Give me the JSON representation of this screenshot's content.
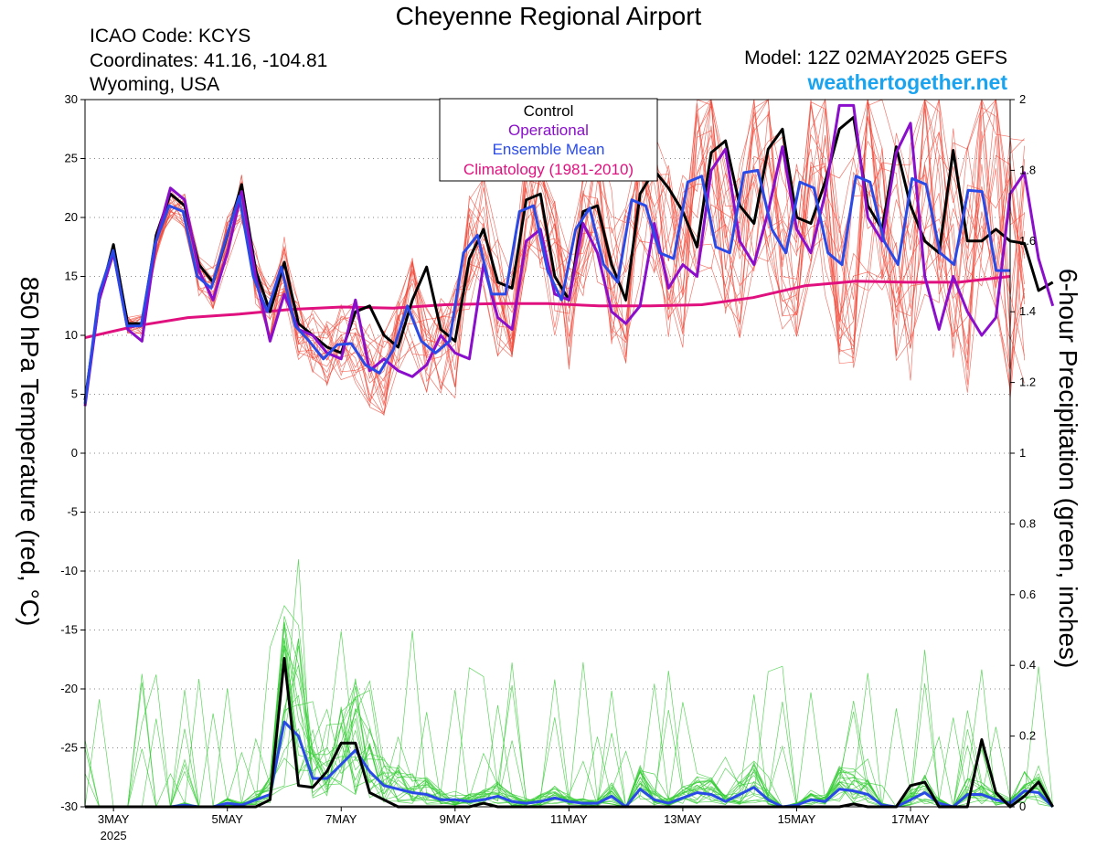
{
  "header": {
    "title": "Cheyenne Regional Airport",
    "icao": "ICAO Code: KCYS",
    "coordinates": "Coordinates: 41.16, -104.81",
    "location": "Wyoming, USA",
    "model": "Model: 12Z 02MAY2025 GEFS",
    "site": "weathertogether.net"
  },
  "colors": {
    "members_temp": "#f04a3a",
    "members_precip": "#33cc33",
    "control": "#000000",
    "operational": "#8a0ecc",
    "ensemble_mean": "#2a4ae8",
    "climatology": "#e0117f",
    "site_link": "#1aa3ee"
  },
  "chart_data": {
    "type": "line",
    "ylabel": "850 hPa Temperature (red, °C)",
    "y2label": "6-hour Precipitation (green, inches)",
    "ylim": [
      -30,
      30
    ],
    "y2lim": [
      0,
      2
    ],
    "yticks": [
      "30",
      "25",
      "20",
      "15",
      "10",
      "5",
      "0",
      "-5",
      "-10",
      "-15",
      "-20",
      "-25",
      "-30"
    ],
    "y2ticks": [
      "2",
      "1.8",
      "1.6",
      "1.4",
      "1.2",
      "1",
      "0.8",
      "0.6",
      "0.4",
      "0.2",
      "0"
    ],
    "x_unit": "days since 00Z 02MAY2025",
    "xlim": [
      0.5,
      16.75
    ],
    "xticks": [
      {
        "x": 1,
        "label": "3MAY",
        "sub": "2025"
      },
      {
        "x": 3,
        "label": "5MAY"
      },
      {
        "x": 5,
        "label": "7MAY"
      },
      {
        "x": 7,
        "label": "9MAY"
      },
      {
        "x": 9,
        "label": "11MAY"
      },
      {
        "x": 11,
        "label": "13MAY"
      },
      {
        "x": 13,
        "label": "15MAY"
      },
      {
        "x": 15,
        "label": "17MAY"
      }
    ],
    "grid": "dotted horizontal",
    "legend": {
      "position": "top-center",
      "entries": [
        "Control",
        "Operational",
        "Ensemble Mean",
        "Climatology (1981-2010)"
      ]
    },
    "x_start": 0.5,
    "x_step": 0.25,
    "series": [
      {
        "name": "Control",
        "axis": "temp",
        "values": [
          4.5,
          13,
          17.7,
          11,
          11,
          18.5,
          22,
          21,
          16,
          14.5,
          18.5,
          22.8,
          15.5,
          12,
          16.2,
          11,
          10,
          9,
          8.5,
          12,
          12.5,
          10,
          9,
          13,
          15.8,
          10.5,
          9.5,
          16.5,
          19,
          14.5,
          14,
          21.5,
          22,
          15,
          13,
          20.5,
          21,
          16,
          13,
          22,
          24,
          22.5,
          20.5,
          17.5,
          25.5,
          26.5,
          21,
          19.5,
          25.8,
          27.5,
          20,
          19.5,
          23,
          27.5,
          28.5,
          21,
          19,
          26,
          21,
          18,
          17,
          25.7,
          18,
          18,
          19,
          18,
          17.8,
          13.8,
          14.5
        ]
      },
      {
        "name": "Operational",
        "axis": "temp",
        "values": [
          4,
          13,
          17,
          10.5,
          9.5,
          18,
          22.5,
          21.5,
          15.5,
          13,
          17,
          22.2,
          15,
          9.5,
          13.5,
          10.5,
          10,
          8.5,
          8,
          13,
          7,
          8,
          7,
          6.5,
          7.5,
          10,
          8.5,
          8,
          16,
          11.5,
          10.5,
          18,
          19,
          13.5,
          13,
          19.5,
          17,
          12,
          11,
          12.5,
          19.5,
          14,
          16,
          15,
          24,
          25.8,
          18,
          16,
          20.5,
          26,
          19,
          17,
          22,
          29.5,
          29.5,
          20,
          18,
          25.5,
          28,
          15,
          10.5,
          15,
          12,
          10,
          11.5,
          22,
          23.8,
          16.5,
          12.5
        ]
      },
      {
        "name": "Ensemble Mean",
        "axis": "temp",
        "values": [
          4.2,
          13.5,
          17.2,
          10.8,
          10.8,
          17.8,
          21,
          20.5,
          15,
          14,
          18,
          21.8,
          15,
          12,
          15.8,
          10.8,
          9.5,
          8,
          9.2,
          9.3,
          7.5,
          6.8,
          8.8,
          12.5,
          9.5,
          8.5,
          9.5,
          17,
          18.5,
          13.5,
          13.5,
          20.5,
          21,
          15.5,
          13,
          19,
          20.8,
          16,
          14.5,
          21.5,
          21,
          17,
          16.5,
          23,
          23.5,
          17.5,
          17,
          23.8,
          24,
          19,
          17,
          23,
          22.5,
          17,
          16,
          23.5,
          23,
          18,
          16,
          23.3,
          22.8,
          17,
          16,
          22.3,
          22.2,
          15.5,
          15.5
        ]
      },
      {
        "name": "Climatology (1981-2010)",
        "axis": "temp",
        "values": [
          9.8,
          10.8,
          11.5,
          11.8,
          12.2,
          12.4,
          12.3,
          12.6,
          12.7,
          12.7,
          12.5,
          12.5,
          12.6,
          13.2,
          14.2,
          14.6,
          14.5,
          14.5,
          15
        ]
      },
      {
        "name": "Control",
        "axis": "precip",
        "values": [
          0,
          0,
          0,
          0,
          0,
          0,
          0,
          0,
          0,
          0,
          0,
          0,
          0,
          0.02,
          0.42,
          0.06,
          0.055,
          0.1,
          0.18,
          0.18,
          0.04,
          0.02,
          0,
          0,
          0,
          0,
          0,
          0,
          0.01,
          0,
          0,
          0,
          0,
          0,
          0,
          0,
          0,
          0,
          0,
          0,
          0,
          0,
          0,
          0,
          0,
          0,
          0,
          0,
          0,
          0,
          0,
          0,
          0,
          0,
          0.008,
          0,
          0,
          0,
          0.06,
          0.07,
          0,
          0,
          0,
          0.19,
          0.04,
          0,
          0.03,
          0.07,
          0
        ]
      },
      {
        "name": "Ensemble Mean",
        "axis": "precip",
        "values": [
          0,
          0,
          0,
          0,
          0,
          0,
          0,
          0.005,
          0,
          0,
          0.01,
          0.005,
          0.02,
          0.035,
          0.24,
          0.2,
          0.08,
          0.08,
          0.12,
          0.16,
          0.1,
          0.06,
          0.05,
          0.04,
          0.035,
          0.02,
          0.02,
          0.015,
          0.02,
          0.03,
          0.015,
          0.01,
          0.015,
          0.025,
          0.015,
          0.01,
          0.01,
          0.03,
          0,
          0.05,
          0.02,
          0.01,
          0.025,
          0.04,
          0.035,
          0.015,
          0.035,
          0.055,
          0.02,
          0,
          0.005,
          0.02,
          0.015,
          0.05,
          0.045,
          0.035,
          0.005,
          0,
          0.02,
          0.04,
          0.01,
          0,
          0.035,
          0.035,
          0.02,
          0.01,
          0.045,
          0.04,
          0
        ]
      }
    ]
  }
}
